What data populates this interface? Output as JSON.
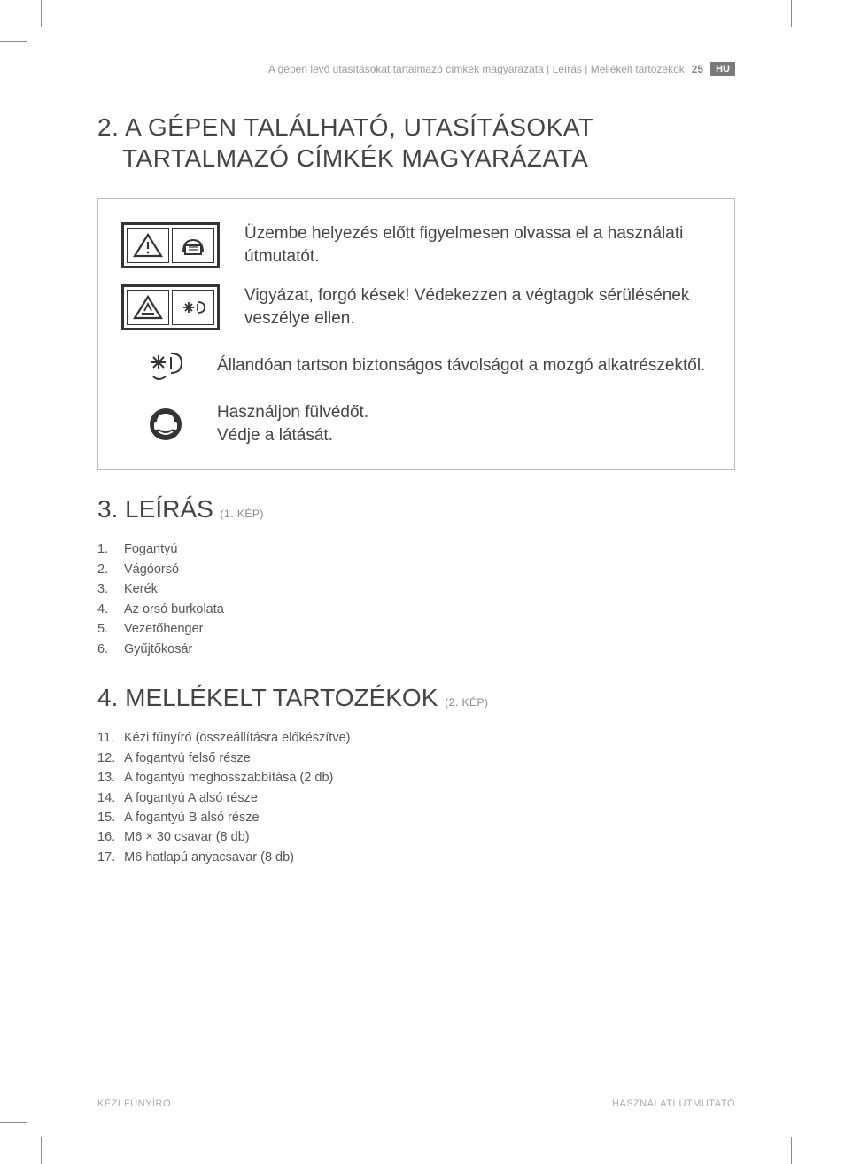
{
  "header": {
    "breadcrumb": "A gépen levő utasításokat tartalmazó címkék magyarázata | Leírás | Mellékelt tartozékok",
    "page_number": "25",
    "lang_code": "HU"
  },
  "section2": {
    "number": "2.",
    "title_line1": "A GÉPEN TALÁLHATÓ, UTASÍTÁSOKAT",
    "title_line2": "TARTALMAZÓ CÍMKÉK MAGYARÁZATA",
    "rows": [
      {
        "icon": "warning-manual",
        "text": "Üzembe helyezés előtt figyelmesen olvassa el a használati útmutatót."
      },
      {
        "icon": "warning-blades",
        "text": "Vigyázat, forgó kések! Védekezzen a végtagok sérülésének veszélye ellen."
      },
      {
        "icon": "blades-distance",
        "text": "Állandóan tartson biztonságos távolságot a mozgó alkatrészektől."
      },
      {
        "icon": "ear-eye-protection",
        "text": "Használjon fülvédőt.\nVédje a látását."
      }
    ]
  },
  "section3": {
    "number": "3.",
    "title": "LEÍRÁS",
    "ref": "(1. KÉP)",
    "items": [
      {
        "n": "1.",
        "t": "Fogantyú"
      },
      {
        "n": "2.",
        "t": "Vágóorsó"
      },
      {
        "n": "3.",
        "t": "Kerék"
      },
      {
        "n": "4.",
        "t": "Az orsó burkolata"
      },
      {
        "n": "5.",
        "t": "Vezetőhenger"
      },
      {
        "n": "6.",
        "t": "Gyűjtőkosár"
      }
    ]
  },
  "section4": {
    "number": "4.",
    "title": "MELLÉKELT TARTOZÉKOK",
    "ref": "(2. KÉP)",
    "items": [
      {
        "n": "11.",
        "t": "Kézi fűnyíró (összeállításra előkészítve)"
      },
      {
        "n": "12.",
        "t": "A fogantyú felső része"
      },
      {
        "n": "13.",
        "t": "A fogantyú meghosszabbítása (2 db)"
      },
      {
        "n": "14.",
        "t": "A fogantyú A alsó része"
      },
      {
        "n": "15.",
        "t": "A fogantyú B alsó része"
      },
      {
        "n": "16.",
        "t": "M6 × 30 csavar (8 db)"
      },
      {
        "n": "17.",
        "t": "M6 hatlapú anyacsavar (8 db)"
      }
    ]
  },
  "footer": {
    "left": "KÉZI FŰNYÍRÓ",
    "right": "HASZNÁLATI ÚTMUTATÓ"
  },
  "colors": {
    "text": "#444444",
    "muted": "#9a9a9a",
    "border": "#bbbbbb",
    "badge_bg": "#7a7a7a",
    "badge_fg": "#ffffff"
  }
}
